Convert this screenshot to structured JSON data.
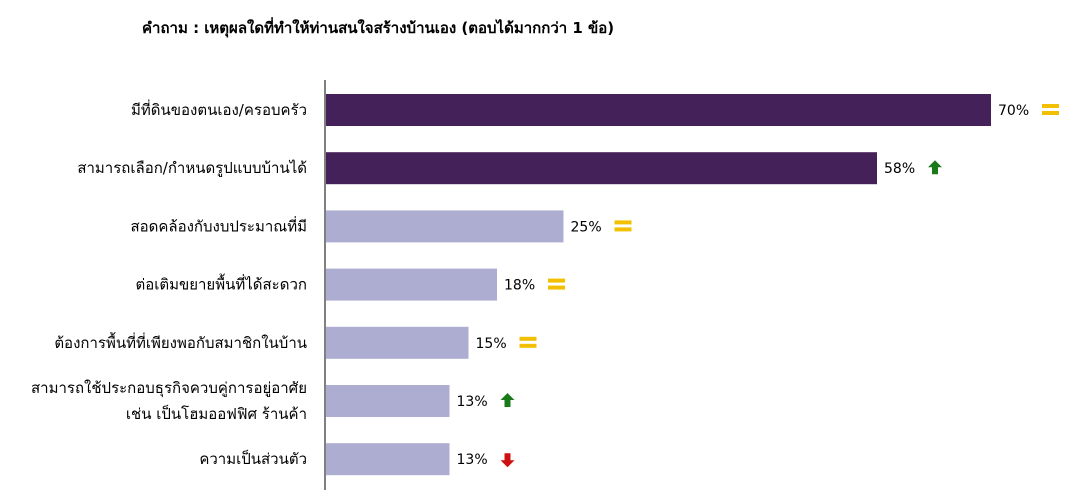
{
  "question_title": "คำถาม : เหตุผลใดที่ทำให้ท่านสนใจสร้างบ้านเอง (ตอบได้มากกว่า 1 ข้อ)",
  "colors": {
    "highlight": "#45215a",
    "normal": "#adadd2",
    "equal": "#f2c000",
    "up": "#1a7a1a",
    "down": "#cc1111"
  },
  "chart_data": {
    "type": "bar",
    "orientation": "horizontal",
    "title": "คำถาม : เหตุผลใดที่ทำให้ท่านสนใจสร้างบ้านเอง (ตอบได้มากกว่า 1 ข้อ)",
    "unit": "%",
    "xlim": [
      0,
      70
    ],
    "categories": [
      [
        "มีที่ดินของตนเอง/ครอบครัว"
      ],
      [
        "สามารถเลือก/กำหนดรูปแบบบ้านได้"
      ],
      [
        "สอดคล้องกับงบประมาณที่มี"
      ],
      [
        "ต่อเติมขยายพื้นที่ได้สะดวก"
      ],
      [
        "ต้องการพื้นที่ที่เพียงพอกับสมาชิกในบ้าน"
      ],
      [
        "สามารถใช้ประกอบธุรกิจควบคู่การอยู่อาศัย",
        "เช่น เป็นโฮมออฟฟิศ ร้านค้า"
      ],
      [
        "ความเป็นส่วนตัว"
      ]
    ],
    "values": [
      70,
      58,
      25,
      18,
      15,
      13,
      13
    ],
    "value_labels": [
      "70%",
      "58%",
      "25%",
      "18%",
      "15%",
      "13%",
      "13%"
    ],
    "highlighted": [
      true,
      true,
      false,
      false,
      false,
      false,
      false
    ],
    "trend_icons": [
      "equal-icon",
      "arrow-up-icon",
      "equal-icon",
      "equal-icon",
      "equal-icon",
      "arrow-up-icon",
      "arrow-down-icon"
    ]
  }
}
